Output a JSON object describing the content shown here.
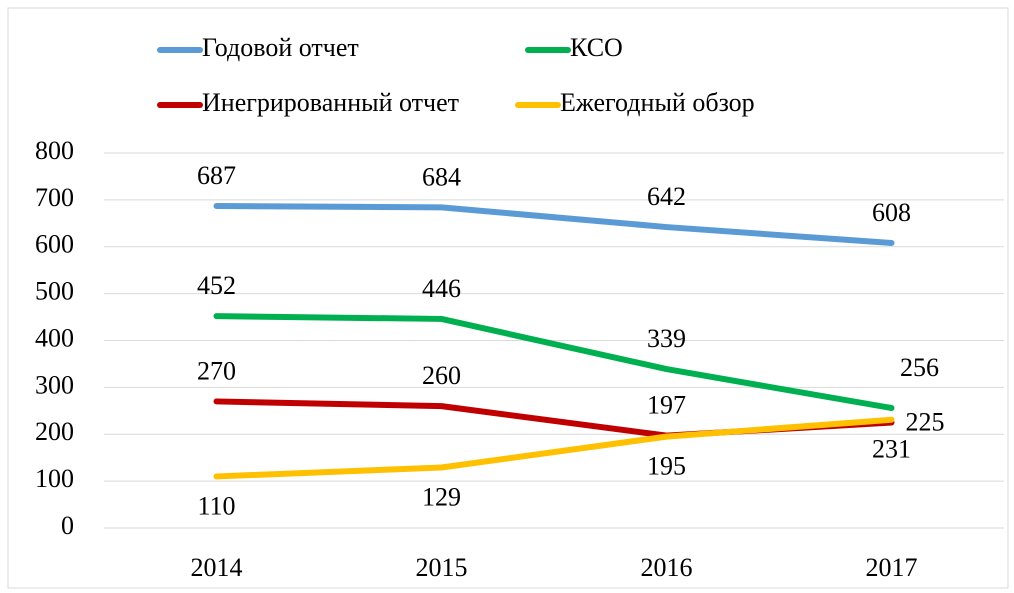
{
  "chart_data": {
    "type": "line",
    "categories": [
      "2014",
      "2015",
      "2016",
      "2017"
    ],
    "series": [
      {
        "name": "Годовой отчет",
        "color": "#5b9bd5",
        "values": [
          687,
          684,
          642,
          608
        ]
      },
      {
        "name": "КСО",
        "color": "#00b050",
        "values": [
          452,
          446,
          339,
          256
        ]
      },
      {
        "name": "Инегрированный отчет",
        "color": "#c00000",
        "values": [
          270,
          260,
          197,
          225
        ]
      },
      {
        "name": "Ежегодный обзор",
        "color": "#ffc000",
        "values": [
          110,
          129,
          195,
          231
        ]
      }
    ],
    "ylim": [
      0,
      800
    ],
    "yticks": [
      0,
      100,
      200,
      300,
      400,
      500,
      600,
      700,
      800
    ],
    "grid": true
  }
}
